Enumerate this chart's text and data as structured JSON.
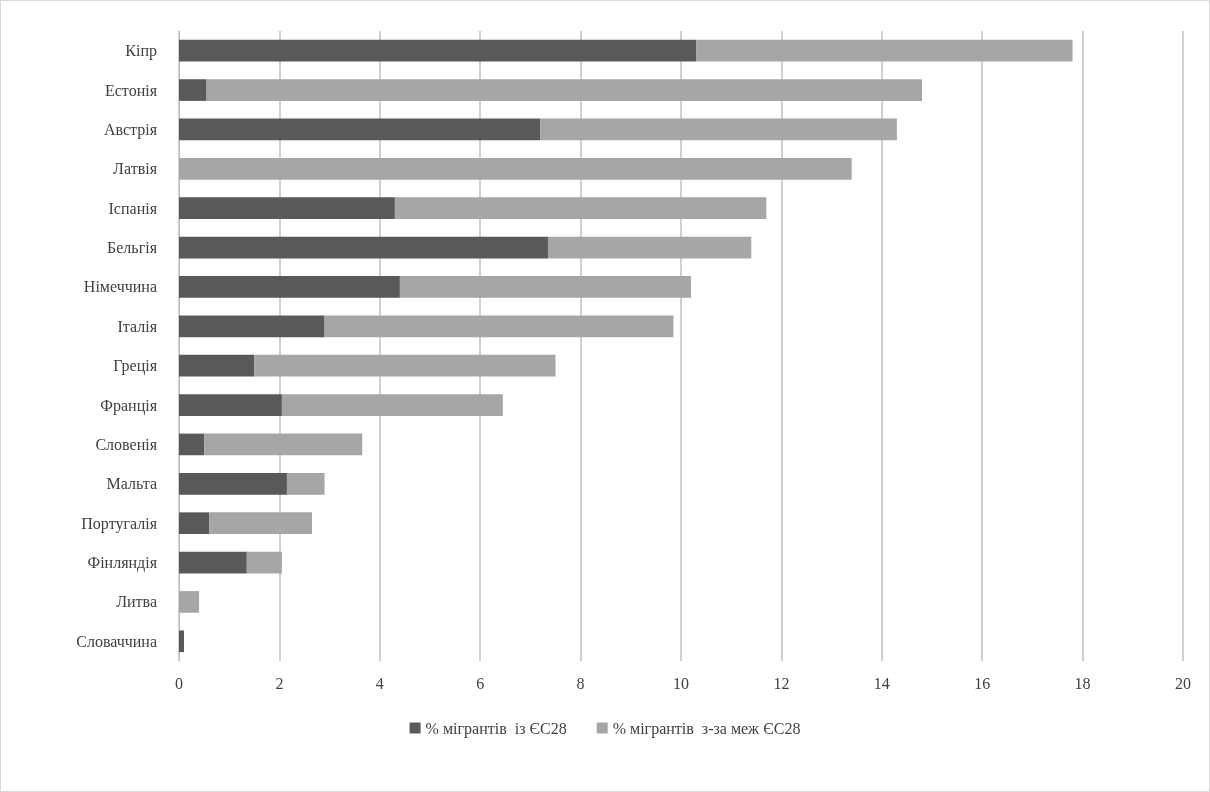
{
  "chart_data": {
    "type": "bar",
    "orientation": "horizontal",
    "stacked": true,
    "categories": [
      "Кіпр",
      "Естонія",
      "Австрія",
      "Латвія",
      "Іспанія",
      "Бельгія",
      "Німеччина",
      "Італія",
      "Греція",
      "Франція",
      "Словенія",
      "Мальта",
      "Португалія",
      "Фінляндія",
      "Литва",
      "Словаччина"
    ],
    "series": [
      {
        "name": "% мігрантів  із ЄС28",
        "color": "#595959",
        "values": [
          10.3,
          0.55,
          7.2,
          0,
          4.3,
          7.35,
          4.4,
          2.9,
          1.5,
          2.05,
          0.5,
          2.15,
          0.6,
          1.35,
          0,
          0.1
        ]
      },
      {
        "name": "% мігрантів  з-за меж ЄС28",
        "color": "#a6a6a6",
        "values": [
          7.5,
          14.25,
          7.1,
          13.4,
          7.4,
          4.05,
          5.8,
          6.95,
          6.0,
          4.4,
          3.15,
          0.75,
          2.05,
          0.7,
          0.4,
          0
        ]
      }
    ],
    "xlim": [
      0,
      20
    ],
    "xticks": [
      0,
      2,
      4,
      6,
      8,
      10,
      12,
      14,
      16,
      18,
      20
    ],
    "grid": "x",
    "legend": "bottom"
  }
}
